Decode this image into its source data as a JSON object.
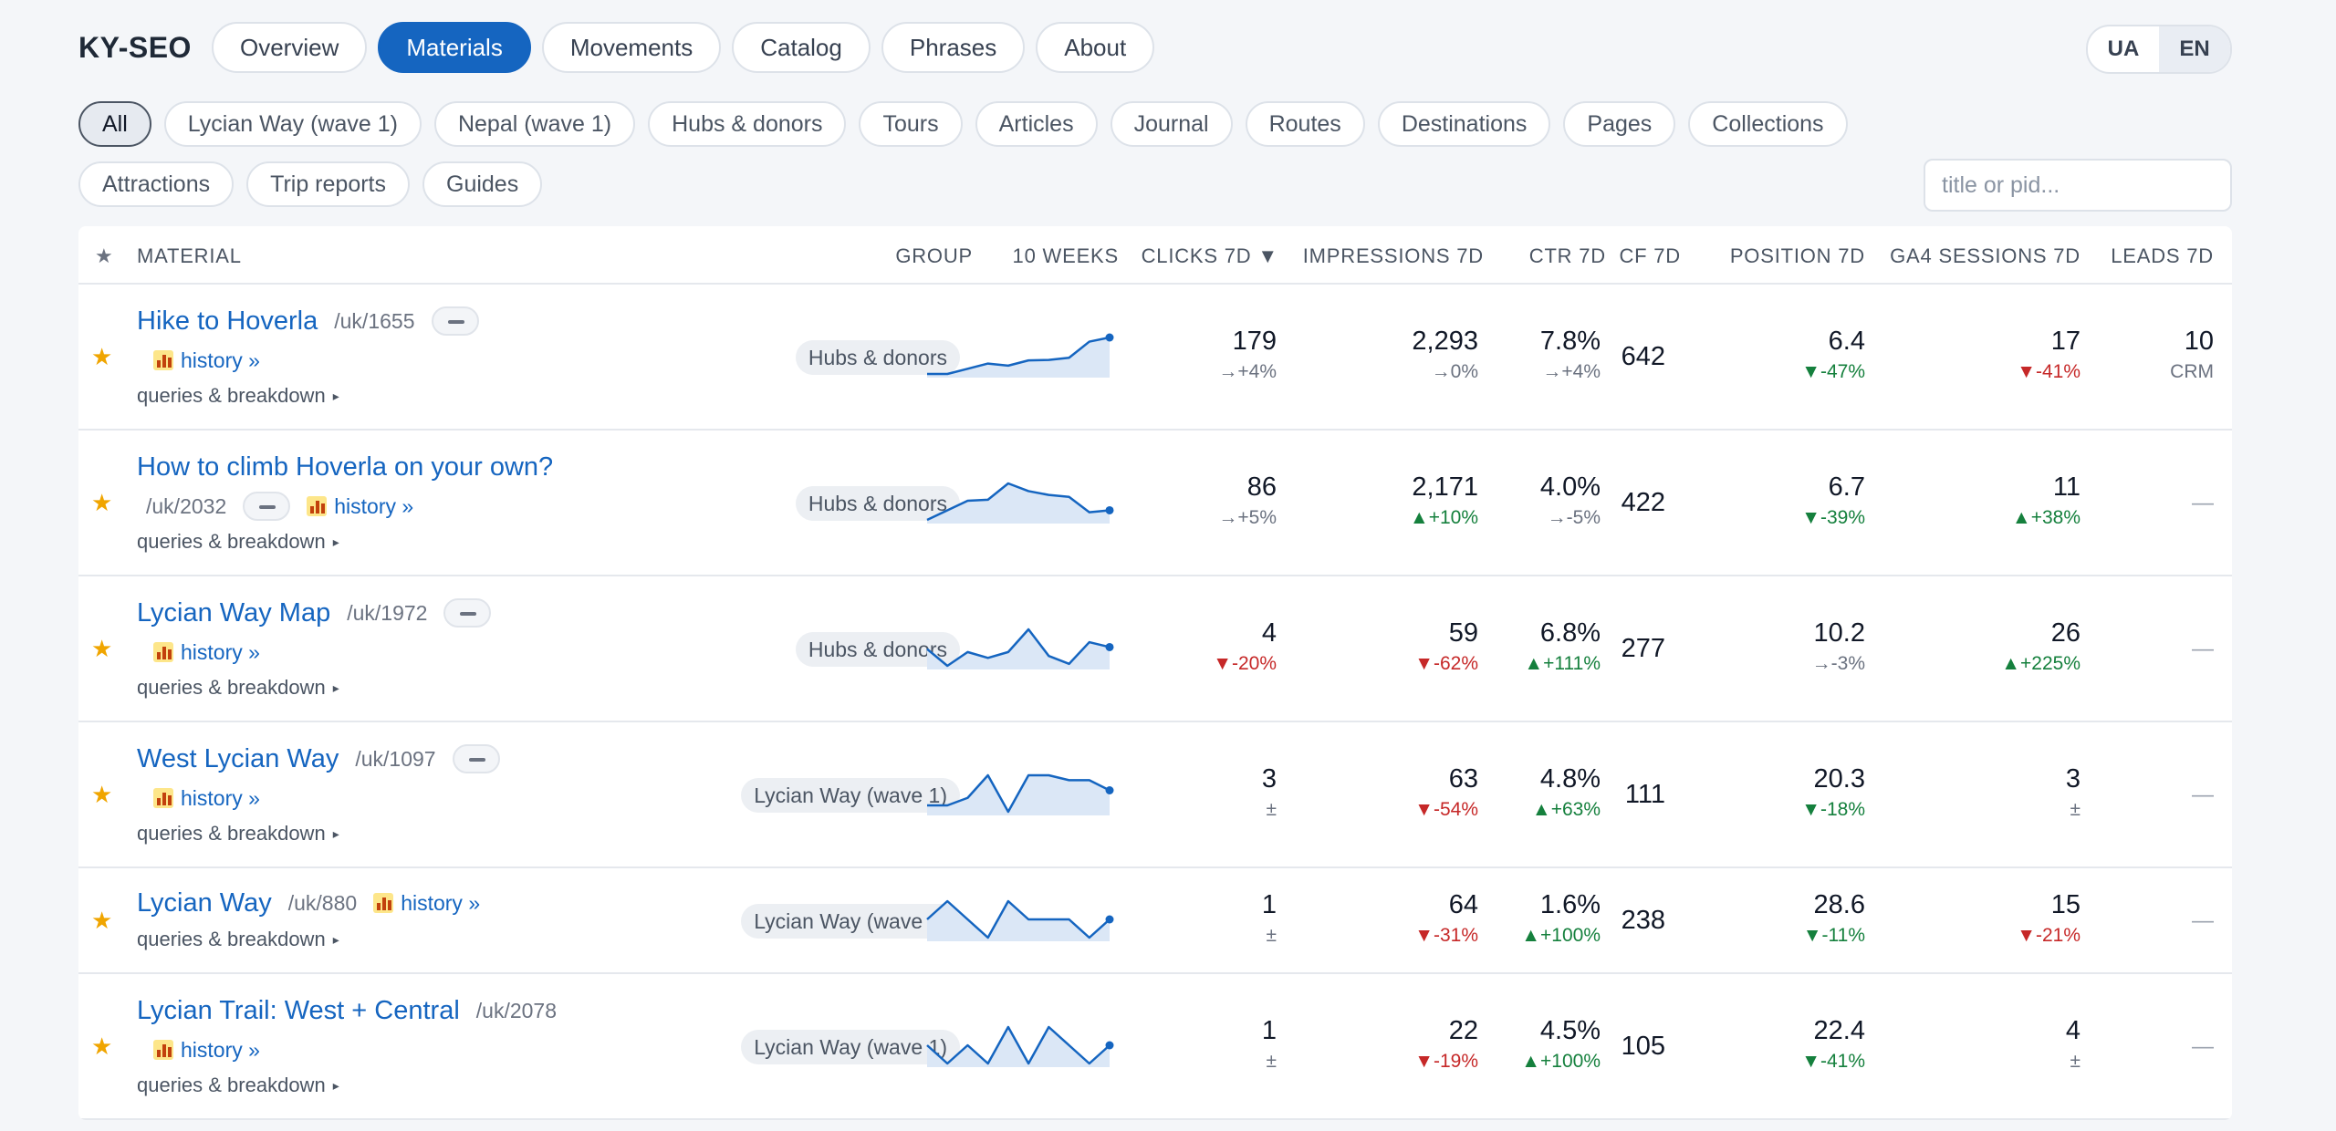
{
  "brand": "KY-SEO",
  "nav": [
    "Overview",
    "Materials",
    "Movements",
    "Catalog",
    "Phrases",
    "About"
  ],
  "nav_active": 1,
  "lang": [
    "UA",
    "EN"
  ],
  "lang_active": 1,
  "filters": [
    "All",
    "Lycian Way (wave 1)",
    "Nepal (wave 1)",
    "Hubs & donors",
    "Tours",
    "Articles",
    "Journal",
    "Routes",
    "Destinations",
    "Pages",
    "Collections",
    "Attractions",
    "Trip reports",
    "Guides"
  ],
  "filter_active": 0,
  "search": {
    "placeholder": "title or pid..."
  },
  "headers": {
    "star": "★",
    "material": "MATERIAL",
    "group": "GROUP",
    "weeks": "10 WEEKS",
    "clicks": "CLICKS 7D ▼",
    "impressions": "IMPRESSIONS 7D",
    "ctr": "CTR 7D",
    "cf": "CF 7D",
    "position": "POSITION 7D",
    "ga4": "GA4 SESSIONS 7D",
    "leads": "LEADS 7D"
  },
  "labels": {
    "history": "history »",
    "queries": "queries & breakdown",
    "queries_arrow": "▸",
    "star": "★",
    "dash": "—"
  },
  "rows": [
    {
      "title": "Hike to Hoverla",
      "pid": "/uk/1655",
      "tag": true,
      "layout": "a",
      "group": "Hubs & donors",
      "spark": [
        3,
        3,
        4,
        5,
        4.6,
        5.6,
        5.7,
        6.1,
        9.2,
        10
      ],
      "clicks": "179",
      "clicks_d": "→+4%",
      "clicks_t": "flat",
      "impr": "2,293",
      "impr_d": "→0%",
      "impr_t": "flat",
      "ctr": "7.8%",
      "ctr_d": "→+4%",
      "ctr_t": "flat",
      "cf": "642",
      "pos": "6.4",
      "pos_d": "▼-47%",
      "pos_t": "up",
      "ga4": "17",
      "ga4_d": "▼-41%",
      "ga4_t": "down",
      "leads": "10",
      "leads_sub": "CRM"
    },
    {
      "title": "How to climb Hoverla on your own?",
      "pid": "/uk/2032",
      "tag": true,
      "layout": "b",
      "group": "Hubs & donors",
      "spark": [
        5,
        6,
        7,
        7.1,
        8.8,
        8,
        7.6,
        7.4,
        5.8,
        6
      ],
      "clicks": "86",
      "clicks_d": "→+5%",
      "clicks_t": "flat",
      "impr": "2,171",
      "impr_d": "▲+10%",
      "impr_t": "up",
      "ctr": "4.0%",
      "ctr_d": "→-5%",
      "ctr_t": "flat",
      "cf": "422",
      "pos": "6.7",
      "pos_d": "▼-39%",
      "pos_t": "up",
      "ga4": "11",
      "ga4_d": "▲+38%",
      "ga4_t": "up",
      "leads": "",
      "leads_sub": ""
    },
    {
      "title": "Lycian Way Map",
      "pid": "/uk/1972",
      "tag": true,
      "layout": "a",
      "group": "Hubs & donors",
      "spark": [
        6,
        2.6,
        5.4,
        4.2,
        5.4,
        10,
        4.6,
        3,
        7.4,
        6.4
      ],
      "clicks": "4",
      "clicks_d": "▼-20%",
      "clicks_t": "down",
      "impr": "59",
      "impr_d": "▼-62%",
      "impr_t": "down",
      "ctr": "6.8%",
      "ctr_d": "▲+111%",
      "ctr_t": "up",
      "cf": "277",
      "pos": "10.2",
      "pos_d": "→-3%",
      "pos_t": "flat",
      "ga4": "26",
      "ga4_d": "▲+225%",
      "ga4_t": "up",
      "leads": "",
      "leads_sub": ""
    },
    {
      "title": "West Lycian Way",
      "pid": "/uk/1097",
      "tag": true,
      "layout": "a",
      "group": "Lycian Way (wave 1)",
      "spark": [
        2,
        2,
        4,
        10,
        0.3,
        10,
        10,
        8.7,
        8.7,
        6
      ],
      "clicks": "3",
      "clicks_d": "±",
      "clicks_t": "flat",
      "impr": "63",
      "impr_d": "▼-54%",
      "impr_t": "down",
      "ctr": "4.8%",
      "ctr_d": "▲+63%",
      "ctr_t": "up",
      "cf": "111",
      "pos": "20.3",
      "pos_d": "▼-18%",
      "pos_t": "up",
      "ga4": "3",
      "ga4_d": "±",
      "ga4_t": "flat",
      "leads": "",
      "leads_sub": ""
    },
    {
      "title": "Lycian Way",
      "pid": "/uk/880",
      "tag": false,
      "layout": "c",
      "group": "Lycian Way (wave 1)",
      "spark": [
        5,
        10,
        5,
        0,
        10,
        5,
        5,
        5,
        0,
        5
      ],
      "clicks": "1",
      "clicks_d": "±",
      "clicks_t": "flat",
      "impr": "64",
      "impr_d": "▼-31%",
      "impr_t": "down",
      "ctr": "1.6%",
      "ctr_d": "▲+100%",
      "ctr_t": "up",
      "cf": "238",
      "pos": "28.6",
      "pos_d": "▼-11%",
      "pos_t": "up",
      "ga4": "15",
      "ga4_d": "▼-21%",
      "ga4_t": "down",
      "leads": "",
      "leads_sub": ""
    },
    {
      "title": "Lycian Trail: West + Central",
      "pid": "/uk/2078",
      "tag": false,
      "layout": "a",
      "group": "Lycian Way (wave 1)",
      "spark": [
        5,
        0,
        5,
        0,
        10,
        0,
        10,
        5,
        0,
        5
      ],
      "clicks": "1",
      "clicks_d": "±",
      "clicks_t": "flat",
      "impr": "22",
      "impr_d": "▼-19%",
      "impr_t": "down",
      "ctr": "4.5%",
      "ctr_d": "▲+100%",
      "ctr_t": "up",
      "cf": "105",
      "pos": "22.4",
      "pos_d": "▼-41%",
      "pos_t": "up",
      "ga4": "4",
      "ga4_d": "±",
      "ga4_t": "flat",
      "leads": "",
      "leads_sub": ""
    }
  ]
}
